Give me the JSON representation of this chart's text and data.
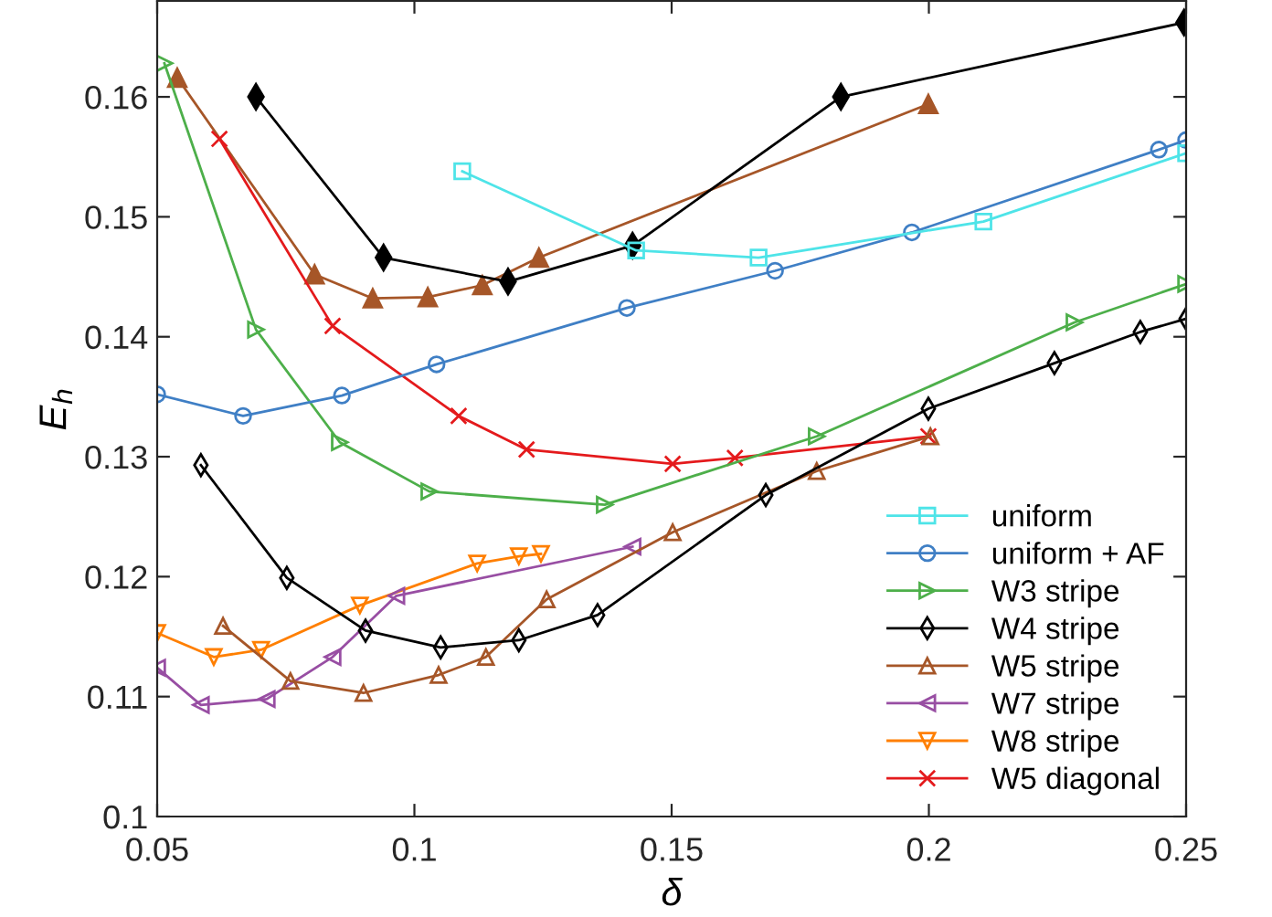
{
  "chart_data": {
    "type": "line",
    "xlabel": "δ",
    "ylabel": "E$_{h}$",
    "xlim": [
      0.05,
      0.25
    ],
    "ylim": [
      0.1,
      0.168
    ],
    "xticks": [
      {
        "value": 0.05,
        "label": "0.05"
      },
      {
        "value": 0.1,
        "label": "0.1"
      },
      {
        "value": 0.15,
        "label": "0.15"
      },
      {
        "value": 0.2,
        "label": "0.2"
      },
      {
        "value": 0.25,
        "label": "0.25"
      }
    ],
    "yticks": [
      {
        "value": 0.1,
        "label": "0.1"
      },
      {
        "value": 0.11,
        "label": "0.11"
      },
      {
        "value": 0.12,
        "label": "0.12"
      },
      {
        "value": 0.13,
        "label": "0.13"
      },
      {
        "value": 0.14,
        "label": "0.14"
      },
      {
        "value": 0.15,
        "label": "0.15"
      },
      {
        "value": 0.16,
        "label": "0.16"
      }
    ],
    "grid": false,
    "legend": "bottom right",
    "line_style": "solid",
    "series": [
      {
        "name": "uniform",
        "color": "#4ee4e8",
        "marker": "square",
        "x": [
          0.1093,
          0.1431,
          0.1669,
          0.2106,
          0.25
        ],
        "values": [
          0.1538,
          0.1472,
          0.1466,
          0.1496,
          0.1553
        ]
      },
      {
        "name": "uniform + AF",
        "color": "#3f7fc5",
        "marker": "circle",
        "x": [
          0.05,
          0.0667,
          0.0859,
          0.1043,
          0.1413,
          0.1701,
          0.1967,
          0.2447,
          0.25
        ],
        "values": [
          0.1352,
          0.1334,
          0.1351,
          0.1377,
          0.1424,
          0.1455,
          0.1487,
          0.1556,
          0.1564
        ]
      },
      {
        "name": "W3 stripe",
        "color": "#4daf4a",
        "marker": "triangle-right",
        "x": [
          0.0514,
          0.0692,
          0.0855,
          0.1029,
          0.137,
          0.1782,
          0.2283,
          0.25
        ],
        "values": [
          0.1628,
          0.1406,
          0.1312,
          0.1271,
          0.126,
          0.1317,
          0.1412,
          0.1444
        ]
      },
      {
        "name": "W4 stripe",
        "color": "#000000",
        "marker": "diamond",
        "x": [
          0.0585,
          0.0752,
          0.0905,
          0.1051,
          0.1203,
          0.1356,
          0.1683,
          0.1999,
          0.2244,
          0.2411,
          0.25
        ],
        "values": [
          0.1293,
          0.1199,
          0.1155,
          0.1141,
          0.1147,
          0.1168,
          0.1268,
          0.134,
          0.1378,
          0.1404,
          0.1415
        ]
      },
      {
        "name": "W5 stripe",
        "color": "#a65628",
        "marker": "triangle",
        "x": [
          0.0628,
          0.0759,
          0.0901,
          0.1047,
          0.1139,
          0.1257,
          0.1502,
          0.1782,
          0.2003
        ],
        "values": [
          0.1159,
          0.1113,
          0.1103,
          0.1118,
          0.1133,
          0.1181,
          0.1237,
          0.1288,
          0.1317
        ]
      },
      {
        "name": "W7 stripe",
        "color": "#984ea3",
        "marker": "triangle-left",
        "x": [
          0.05,
          0.0585,
          0.0713,
          0.0841,
          0.0965,
          0.1424
        ],
        "values": [
          0.1124,
          0.1093,
          0.1098,
          0.1133,
          0.1184,
          0.1225
        ]
      },
      {
        "name": "W8 stripe",
        "color": "#ff7f00",
        "marker": "triangle-down",
        "x": [
          0.05,
          0.061,
          0.0702,
          0.0894,
          0.1122,
          0.1203,
          0.1246
        ],
        "values": [
          0.1153,
          0.1133,
          0.1139,
          0.1176,
          0.1211,
          0.1217,
          0.1219
        ]
      },
      {
        "name": "W5 diagonal",
        "color": "#e41a1c",
        "marker": "cross",
        "x": [
          0.0621,
          0.0841,
          0.1086,
          0.1218,
          0.1502,
          0.1623,
          0.1999
        ],
        "values": [
          0.1565,
          0.1409,
          0.1334,
          0.1306,
          0.1294,
          0.1299,
          0.1317
        ]
      },
      {
        "color": "#000000",
        "marker": "diamond-filled",
        "x": [
          0.0692,
          0.094,
          0.1182,
          0.1424,
          0.1829,
          0.2496
        ],
        "values": [
          0.16,
          0.1466,
          0.1446,
          0.1476,
          0.16,
          0.1662
        ]
      },
      {
        "color": "#a65628",
        "marker": "triangle-filled",
        "x": [
          0.0539,
          0.0806,
          0.0919,
          0.1026,
          0.1132,
          0.1242,
          0.1999
        ],
        "values": [
          0.1616,
          0.1452,
          0.1432,
          0.1433,
          0.1443,
          0.1466,
          0.1594
        ]
      }
    ]
  }
}
